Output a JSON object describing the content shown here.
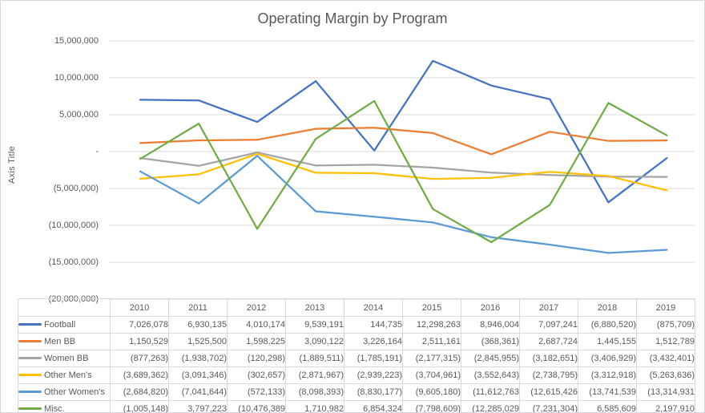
{
  "chart": {
    "title": "Operating Margin by Program",
    "y_axis_title": "Axis Title"
  },
  "chart_data": {
    "type": "line",
    "x": [
      "2010",
      "2011",
      "2012",
      "2013",
      "2014",
      "2015",
      "2016",
      "2017",
      "2018",
      "2019"
    ],
    "grid": true,
    "legend_position": "data-table-left",
    "ylim": [
      -20000000,
      15000000
    ],
    "y_ticks": [
      {
        "label": "15,000,000",
        "value": 15000000
      },
      {
        "label": "10,000,000",
        "value": 10000000
      },
      {
        "label": "5,000,000",
        "value": 5000000
      },
      {
        "label": "-",
        "value": 0
      },
      {
        "label": "(5,000,000)",
        "value": -5000000
      },
      {
        "label": "(10,000,000)",
        "value": -10000000
      },
      {
        "label": "(15,000,000)",
        "value": -15000000
      },
      {
        "label": "(20,000,000)",
        "value": -20000000
      }
    ],
    "series": [
      {
        "name": "Football",
        "color": "#4472C4",
        "values": [
          7026078,
          6930135,
          4010174,
          9539191,
          144735,
          12298263,
          8946004,
          7097241,
          -6880520,
          -875709
        ],
        "display": [
          "7,026,078",
          "6,930,135",
          "4,010,174",
          "9,539,191",
          "144,735",
          "12,298,263",
          "8,946,004",
          "7,097,241",
          "(6,880,520)",
          "(875,709)"
        ]
      },
      {
        "name": "Men BB",
        "color": "#ED7D31",
        "values": [
          1150529,
          1525500,
          1598225,
          3090122,
          3226164,
          2511161,
          -368361,
          2687724,
          1445155,
          1512789
        ],
        "display": [
          "1,150,529",
          "1,525,500",
          "1,598,225",
          "3,090,122",
          "3,226,164",
          "2,511,161",
          "(368,361)",
          "2,687,724",
          "1,445,155",
          "1,512,789"
        ]
      },
      {
        "name": "Women BB",
        "color": "#A5A5A5",
        "values": [
          -877263,
          -1938702,
          -120298,
          -1889511,
          -1785191,
          -2177315,
          -2845955,
          -3182651,
          -3406929,
          -3432401
        ],
        "display": [
          "(877,263)",
          "(1,938,702)",
          "(120,298)",
          "(1,889,511)",
          "(1,785,191)",
          "(2,177,315)",
          "(2,845,955)",
          "(3,182,651)",
          "(3,406,929)",
          "(3,432,401)"
        ]
      },
      {
        "name": "Other Men's",
        "color": "#FFC000",
        "values": [
          -3689362,
          -3091346,
          -302657,
          -2871967,
          -2939223,
          -3704961,
          -3552643,
          -2738795,
          -3312918,
          -5263636
        ],
        "display": [
          "(3,689,362)",
          "(3,091,346)",
          "(302,657)",
          "(2,871,967)",
          "(2,939,223)",
          "(3,704,961)",
          "(3,552,643)",
          "(2,738,795)",
          "(3,312,918)",
          "(5,263,636)"
        ]
      },
      {
        "name": "Other Women's",
        "color": "#5B9BD5",
        "values": [
          -2684820,
          -7041644,
          -572133,
          -8098393,
          -8830177,
          -9605180,
          -11612763,
          -12615426,
          -13741539,
          -13314931
        ],
        "display": [
          "(2,684,820)",
          "(7,041,644)",
          "(572,133)",
          "(8,098,393)",
          "(8,830,177)",
          "(9,605,180)",
          "(11,612,763",
          "(12,615,426",
          "(13,741,539",
          "(13,314,931"
        ]
      },
      {
        "name": "Misc.",
        "color": "#70AD47",
        "values": [
          -1005148,
          3797223,
          -10476389,
          1710982,
          6854324,
          -7798609,
          -12285029,
          -7231304,
          6585609,
          2197910
        ],
        "display": [
          "(1,005,148)",
          "3,797,223",
          "(10,476,389",
          "1,710,982",
          "6,854,324",
          "(7,798,609)",
          "(12,285,029",
          "(7,231,304)",
          "6,585,609",
          "2,197,910"
        ]
      }
    ]
  }
}
